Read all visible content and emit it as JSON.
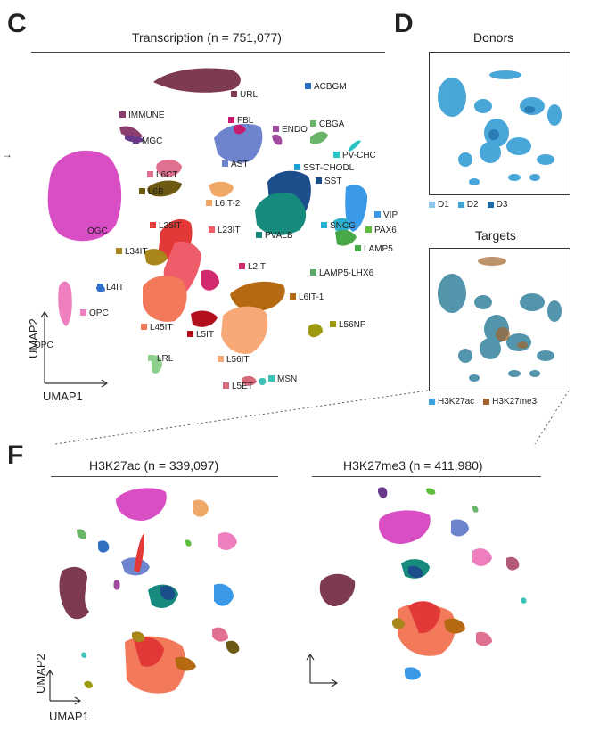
{
  "panels": {
    "c": {
      "letter": "C",
      "title": "Transcription (n = 751,077)"
    },
    "d": {
      "letter": "D",
      "title_donors": "Donors",
      "title_targets": "Targets"
    },
    "f": {
      "letter": "F",
      "title_left": "H3K27ac (n = 339,097)",
      "title_right": "H3K27me3 (n = 411,980)"
    }
  },
  "axes": {
    "x": "UMAP1",
    "y": "UMAP2"
  },
  "chart_data": [
    {
      "type": "scatter",
      "title": "Transcription (n = 751,077)",
      "xlabel": "UMAP1",
      "ylabel": "UMAP2",
      "grid": false,
      "clusters": [
        {
          "name": "URL",
          "color": "#7d3a52"
        },
        {
          "name": "ACBGM",
          "color": "#2e6fc2"
        },
        {
          "name": "IMMUNE",
          "color": "#8c3e6e"
        },
        {
          "name": "FBL",
          "color": "#c61e6e"
        },
        {
          "name": "ENDO",
          "color": "#a04aa0"
        },
        {
          "name": "CBGA",
          "color": "#6ab56a"
        },
        {
          "name": "MGC",
          "color": "#6a3a8a"
        },
        {
          "name": "PV-CHC",
          "color": "#2ac4c4"
        },
        {
          "name": "AST",
          "color": "#6f84cf"
        },
        {
          "name": "SST-CHODL",
          "color": "#1aa0d0"
        },
        {
          "name": "L6CT",
          "color": "#e0708f"
        },
        {
          "name": "SST",
          "color": "#1c4e8c"
        },
        {
          "name": "L6B",
          "color": "#6d5a12"
        },
        {
          "name": "L6IT-2",
          "color": "#f0a868"
        },
        {
          "name": "VIP",
          "color": "#3a9ae8"
        },
        {
          "name": "L35IT",
          "color": "#e33838"
        },
        {
          "name": "L23IT",
          "color": "#ef5d6b"
        },
        {
          "name": "PVALB",
          "color": "#168a7c"
        },
        {
          "name": "SNCG",
          "color": "#2bb0d0"
        },
        {
          "name": "PAX6",
          "color": "#5ec03a"
        },
        {
          "name": "OGC",
          "color": "#d94ec4"
        },
        {
          "name": "LAMP5",
          "color": "#46a846"
        },
        {
          "name": "L34IT",
          "color": "#a8861a"
        },
        {
          "name": "L2IT",
          "color": "#d12a6e"
        },
        {
          "name": "LAMP5-LHX6",
          "color": "#5aa86a"
        },
        {
          "name": "L4IT",
          "color": "#2f6fc8"
        },
        {
          "name": "L6IT-1",
          "color": "#b56a12"
        },
        {
          "name": "OPC",
          "color": "#ee7fbe"
        },
        {
          "name": "L45IT",
          "color": "#f27a5a"
        },
        {
          "name": "L5IT",
          "color": "#b3101e"
        },
        {
          "name": "L56NP",
          "color": "#9e9a12"
        },
        {
          "name": "LRL",
          "color": "#8ecf8e"
        },
        {
          "name": "L56IT",
          "color": "#f7a877"
        },
        {
          "name": "MSN",
          "color": "#3ec2b8"
        },
        {
          "name": "L5ET",
          "color": "#d46a7a"
        }
      ]
    },
    {
      "type": "scatter",
      "title": "Donors",
      "legend_position": "bottom",
      "series": [
        {
          "name": "D1",
          "color": "#8ec8ec"
        },
        {
          "name": "D2",
          "color": "#3fa3d6"
        },
        {
          "name": "D3",
          "color": "#1e6aa6"
        }
      ]
    },
    {
      "type": "scatter",
      "title": "Targets",
      "legend_position": "bottom",
      "series": [
        {
          "name": "H3K27ac",
          "color": "#3aa6e0"
        },
        {
          "name": "H3K27me3",
          "color": "#a0652c"
        }
      ]
    },
    {
      "type": "scatter",
      "title": "H3K27ac (n = 339,097)",
      "xlabel": "UMAP1",
      "ylabel": "UMAP2"
    },
    {
      "type": "scatter",
      "title": "H3K27me3 (n = 411,980)"
    }
  ]
}
